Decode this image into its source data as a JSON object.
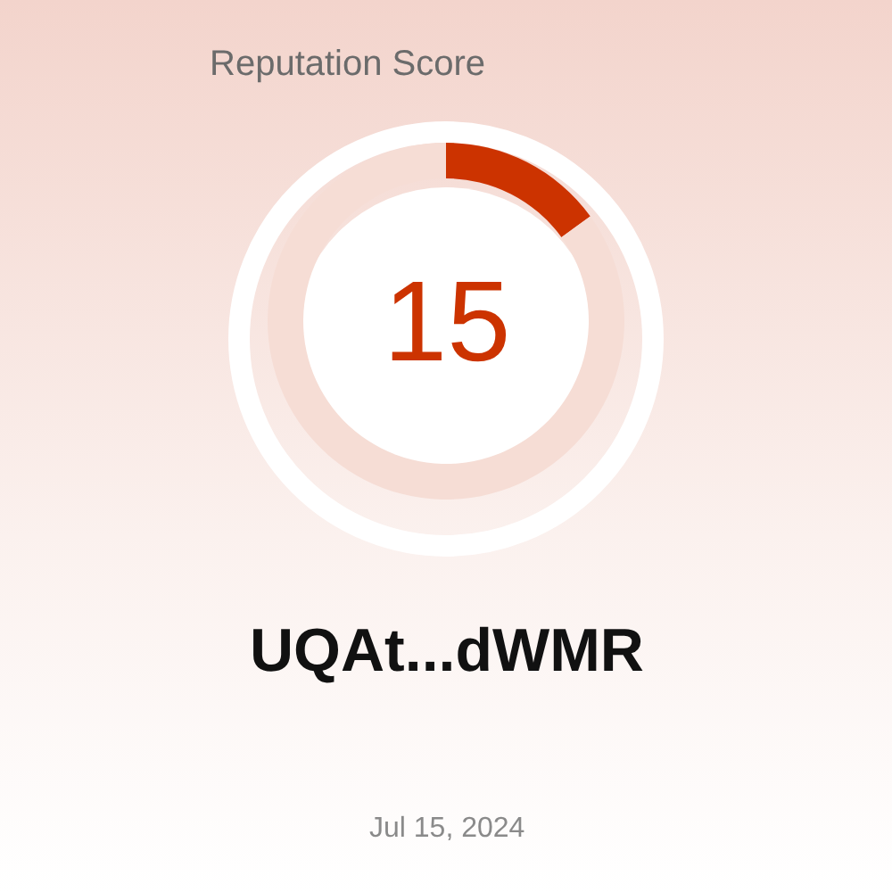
{
  "chart_data": {
    "type": "donut",
    "title": "Reputation Score",
    "categories": [
      null,
      null
    ],
    "values": [
      15,
      85
    ],
    "colors": [
      "#cc3300",
      "#f6ddd5"
    ],
    "annotations": [
      "15",
      "UQAt...dWMR",
      "Jul 15, 2024"
    ],
    "legend": false
  }
}
